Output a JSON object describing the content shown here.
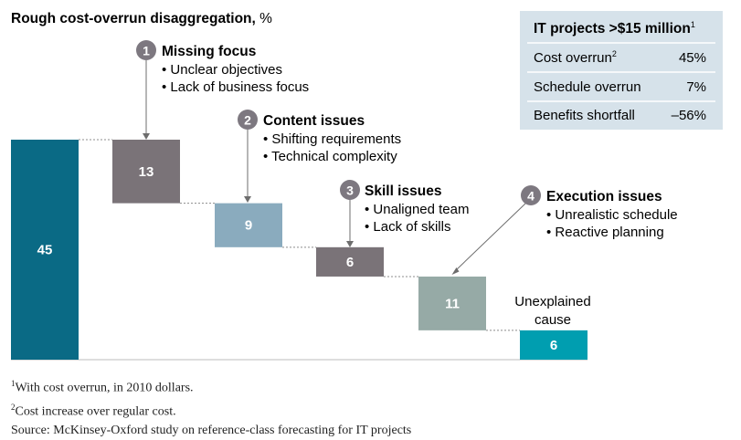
{
  "chart_data": {
    "type": "bar",
    "subtype": "waterfall",
    "title": "Rough cost-overrun disaggregation,",
    "title_unit": " %",
    "total": {
      "label": "45",
      "value": 45
    },
    "steps": [
      {
        "value": 13,
        "label": "13",
        "num": "1",
        "heading": "Missing focus",
        "bullets": [
          "Unclear objectives",
          "Lack of business focus"
        ],
        "color": "#7a7378"
      },
      {
        "value": 9,
        "label": "9",
        "num": "2",
        "heading": "Content issues",
        "bullets": [
          "Shifting requirements",
          "Technical complexity"
        ],
        "color": "#8aabbe"
      },
      {
        "value": 6,
        "label": "6",
        "num": "3",
        "heading": "Skill issues",
        "bullets": [
          "Unaligned team",
          "Lack of skills"
        ],
        "color": "#7a7378"
      },
      {
        "value": 11,
        "label": "11",
        "num": "4",
        "heading": "Execution issues",
        "bullets": [
          "Unrealistic schedule",
          "Reactive planning"
        ],
        "color": "#96aaa6"
      },
      {
        "value": 6,
        "label": "6",
        "caption_line1": "Unexplained",
        "caption_line2": "cause",
        "color": "#009eb0"
      }
    ],
    "colors": {
      "total": "#0a6a85",
      "badge": "#7d7880",
      "text_on_bar": "#ffffff"
    }
  },
  "table": {
    "header_text": "IT projects >$15 million",
    "header_sup": "1",
    "rows": [
      {
        "label": "Cost overrun",
        "sup": "2",
        "value": "45%"
      },
      {
        "label": "Schedule overrun",
        "sup": "",
        "value": "7%"
      },
      {
        "label": "Benefits shortfall",
        "sup": "",
        "value": "–56%"
      }
    ],
    "bg_color": "#d6e2ea"
  },
  "footnotes": {
    "note1_sup": "1",
    "note1": "With cost overrun, in 2010 dollars.",
    "note2_sup": "2",
    "note2": "Cost increase over regular cost.",
    "source": "Source: McKinsey-Oxford study on reference-class forecasting for IT projects"
  }
}
